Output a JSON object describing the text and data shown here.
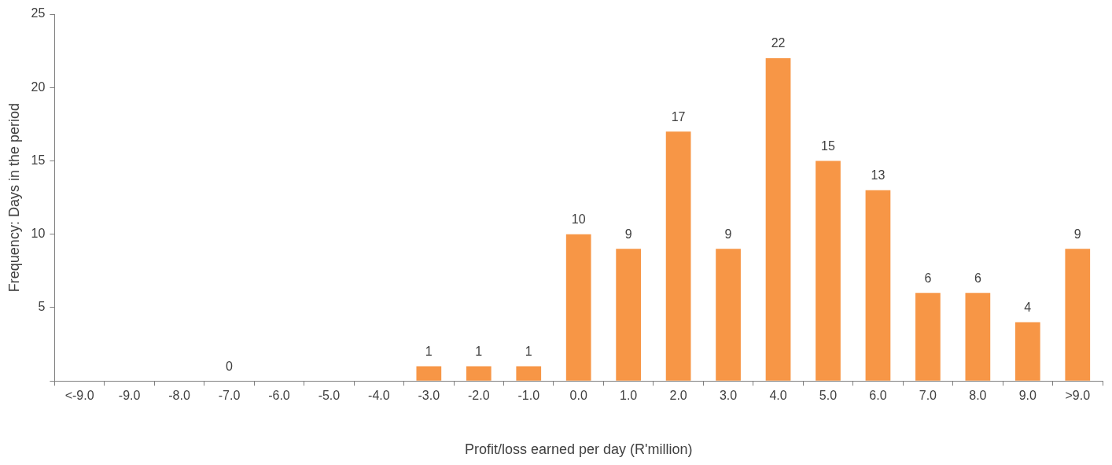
{
  "chart_data": {
    "type": "bar",
    "xlabel": "Profit/loss earned per day (R'million)",
    "ylabel": "Frequency: Days in the period",
    "categories": [
      "<-9.0",
      "-9.0",
      "-8.0",
      "-7.0",
      "-6.0",
      "-5.0",
      "-4.0",
      "-3.0",
      "-2.0",
      "-1.0",
      "0.0",
      "1.0",
      "2.0",
      "3.0",
      "4.0",
      "5.0",
      "6.0",
      "7.0",
      "8.0",
      "9.0",
      ">9.0"
    ],
    "values": [
      0,
      0,
      0,
      0,
      0,
      0,
      0,
      1,
      1,
      1,
      10,
      9,
      17,
      9,
      22,
      15,
      13,
      6,
      6,
      4,
      9
    ],
    "value_labels": [
      null,
      null,
      null,
      "0",
      null,
      null,
      null,
      "1",
      "1",
      "1",
      "10",
      "9",
      "17",
      "9",
      "22",
      "15",
      "13",
      "6",
      "6",
      "4",
      "9"
    ],
    "color": "#f79646",
    "ylim": [
      0,
      25
    ],
    "yticks": [
      {
        "value": 0,
        "label": null
      },
      5,
      10,
      15,
      20,
      25
    ],
    "grid": false,
    "legend": false
  }
}
